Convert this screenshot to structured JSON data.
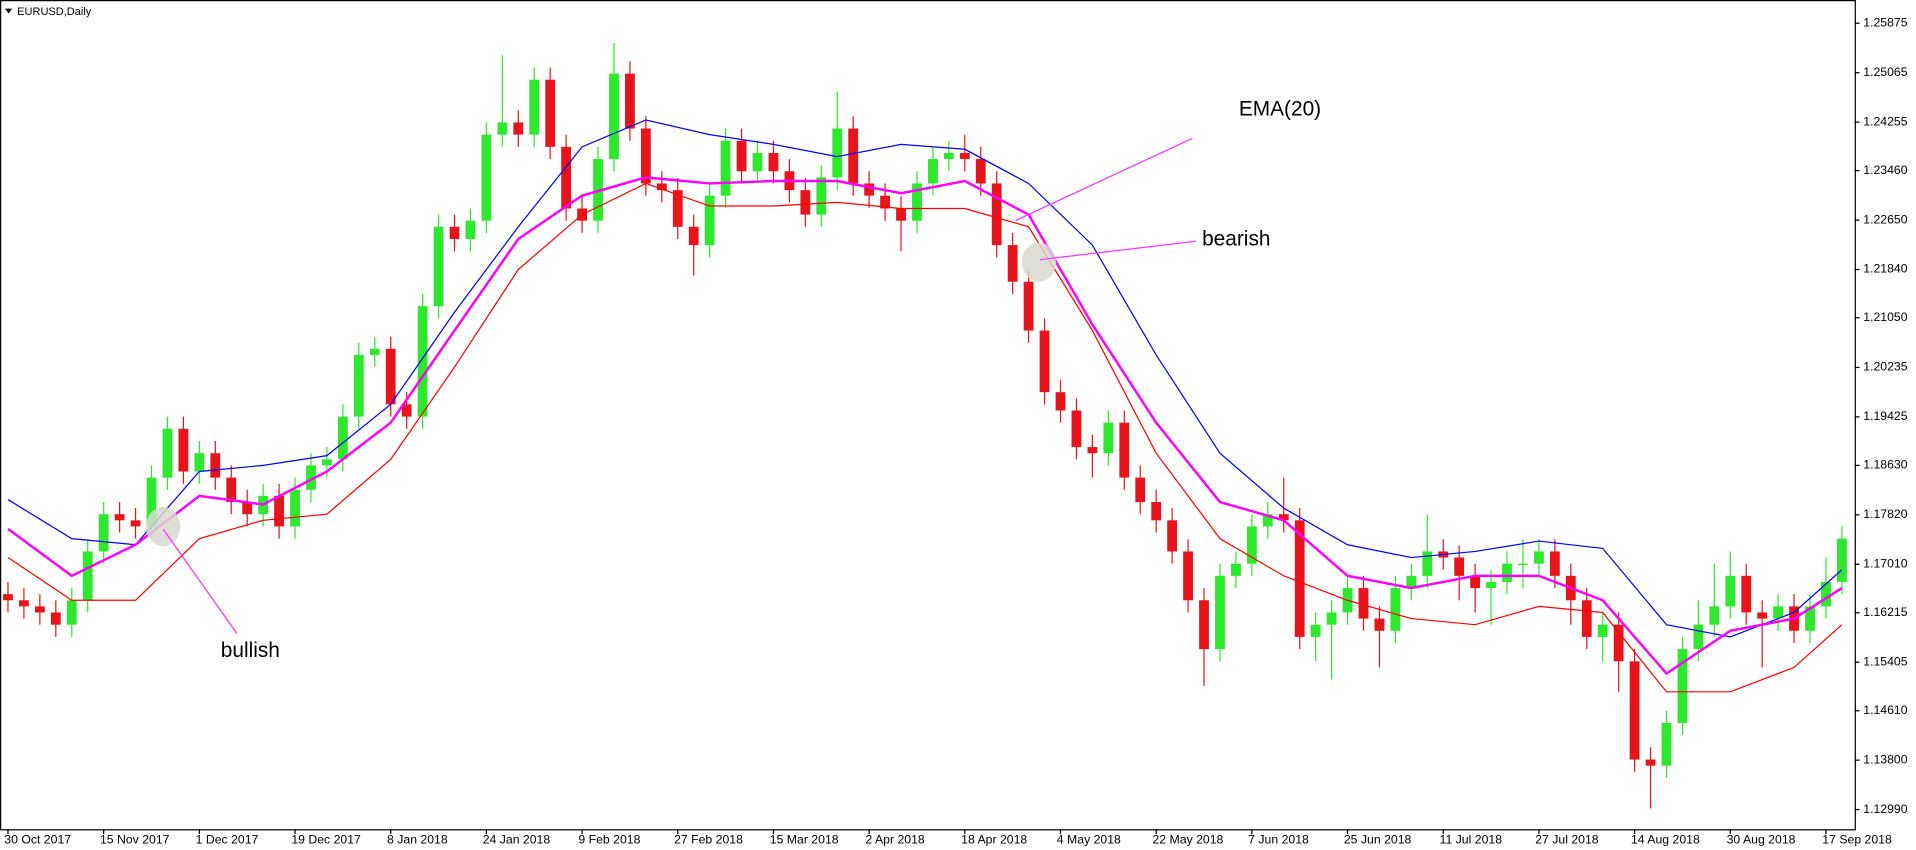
{
  "chart_data": {
    "type": "candlestick",
    "title": "EURUSD,Daily",
    "annotations": [
      "EMA(20)",
      "bearish",
      "bullish"
    ],
    "up_color": "#2ee82e",
    "down_color": "#e8141c",
    "open": [
      1.1652,
      1.1642,
      1.1632,
      1.1622,
      1.1602,
      1.1642,
      1.1722,
      1.1783,
      1.1773,
      1.1763,
      1.1843,
      1.1923,
      1.1853,
      1.1883,
      1.1843,
      1.1803,
      1.1783,
      1.1813,
      1.1763,
      1.1823,
      1.1863,
      1.1873,
      1.1943,
      1.2044,
      1.2054,
      1.1963,
      1.1943,
      1.2124,
      1.2254,
      1.2234,
      1.2264,
      1.2405,
      1.2425,
      1.2405,
      1.2495,
      1.2385,
      1.2284,
      1.2264,
      1.2365,
      1.2505,
      1.2415,
      1.2325,
      1.2314,
      1.2254,
      1.2224,
      1.2305,
      1.2395,
      1.2345,
      1.2375,
      1.2345,
      1.2314,
      1.2274,
      1.2335,
      1.2415,
      1.2325,
      1.2305,
      1.2284,
      1.2264,
      1.2325,
      1.2365,
      1.2375,
      1.2365,
      1.2325,
      1.2224,
      1.2164,
      1.2084,
      1.1983,
      1.1953,
      1.1893,
      1.1883,
      1.1933,
      1.1843,
      1.1803,
      1.1773,
      1.1722,
      1.1642,
      1.1562,
      1.1682,
      1.1702,
      1.1763,
      1.1783,
      1.1773,
      1.1582,
      1.1602,
      1.1622,
      1.1662,
      1.1612,
      1.1592,
      1.1662,
      1.1682,
      1.1722,
      1.1712,
      1.1682,
      1.1662,
      1.1672,
      1.1702,
      1.1702,
      1.1722,
      1.1682,
      1.1642,
      1.1582,
      1.1602,
      1.1542,
      1.1381,
      1.1371,
      1.1441,
      1.1562,
      1.1602,
      1.1632,
      1.1682,
      1.1622,
      1.1612,
      1.1632,
      1.1592,
      1.1632,
      1.1672
    ],
    "high": [
      1.1672,
      1.1662,
      1.1652,
      1.1642,
      1.1662,
      1.1742,
      1.1803,
      1.1803,
      1.1793,
      1.1863,
      1.1943,
      1.1943,
      1.1903,
      1.1903,
      1.1863,
      1.1823,
      1.1833,
      1.1833,
      1.1843,
      1.1883,
      1.1893,
      1.1963,
      1.2064,
      1.2074,
      1.2074,
      1.1983,
      1.2144,
      1.2274,
      1.2274,
      1.2284,
      1.2425,
      1.2535,
      1.2445,
      1.2515,
      1.2515,
      1.2405,
      1.2304,
      1.2385,
      1.2555,
      1.2525,
      1.2435,
      1.2345,
      1.2334,
      1.2274,
      1.2325,
      1.2415,
      1.2415,
      1.2395,
      1.2395,
      1.2365,
      1.2334,
      1.2355,
      1.2475,
      1.2435,
      1.2345,
      1.2325,
      1.2304,
      1.2345,
      1.2385,
      1.2395,
      1.2405,
      1.2385,
      1.2345,
      1.2244,
      1.2184,
      1.2104,
      1.2003,
      1.1973,
      1.1913,
      1.1953,
      1.1953,
      1.1863,
      1.1823,
      1.1793,
      1.1742,
      1.1662,
      1.1702,
      1.1722,
      1.1783,
      1.1803,
      1.1843,
      1.1793,
      1.1622,
      1.1642,
      1.1682,
      1.1682,
      1.1632,
      1.1682,
      1.1702,
      1.1782,
      1.1742,
      1.1732,
      1.1702,
      1.1692,
      1.1722,
      1.1742,
      1.1742,
      1.1742,
      1.1702,
      1.1662,
      1.1622,
      1.1622,
      1.1562,
      1.1401,
      1.1461,
      1.1582,
      1.1642,
      1.1702,
      1.1722,
      1.1702,
      1.1642,
      1.1652,
      1.1652,
      1.1652,
      1.1712,
      1.1763
    ],
    "low": [
      1.1622,
      1.1612,
      1.1602,
      1.1582,
      1.1582,
      1.1622,
      1.1702,
      1.1753,
      1.1743,
      1.1743,
      1.1823,
      1.1833,
      1.1833,
      1.1823,
      1.1783,
      1.1763,
      1.1763,
      1.1743,
      1.1743,
      1.1803,
      1.1843,
      1.1853,
      1.1923,
      1.2024,
      1.1943,
      1.1923,
      1.1923,
      1.2104,
      1.2214,
      1.2214,
      1.2244,
      1.2385,
      1.2385,
      1.2385,
      1.2365,
      1.2264,
      1.2244,
      1.2244,
      1.2345,
      1.2395,
      1.2305,
      1.2294,
      1.2234,
      1.2174,
      1.2204,
      1.2285,
      1.2325,
      1.2325,
      1.2325,
      1.2294,
      1.2254,
      1.2254,
      1.2315,
      1.2305,
      1.2285,
      1.2264,
      1.2214,
      1.2244,
      1.2305,
      1.2345,
      1.2345,
      1.2305,
      1.2204,
      1.2144,
      1.2064,
      1.1963,
      1.1933,
      1.1873,
      1.1843,
      1.1863,
      1.1823,
      1.1783,
      1.1753,
      1.1702,
      1.1622,
      1.1502,
      1.1542,
      1.1662,
      1.1682,
      1.1743,
      1.1753,
      1.1562,
      1.1542,
      1.1512,
      1.1602,
      1.1592,
      1.1532,
      1.1572,
      1.1642,
      1.1662,
      1.1692,
      1.1642,
      1.1622,
      1.1602,
      1.1652,
      1.1662,
      1.1682,
      1.1662,
      1.1602,
      1.1562,
      1.1542,
      1.1492,
      1.1361,
      1.1301,
      1.1351,
      1.1421,
      1.1542,
      1.1582,
      1.1612,
      1.1602,
      1.1532,
      1.1592,
      1.1572,
      1.1572,
      1.1612,
      1.1652
    ],
    "close": [
      1.1642,
      1.1632,
      1.1622,
      1.1602,
      1.1642,
      1.1722,
      1.1783,
      1.1773,
      1.1763,
      1.1843,
      1.1923,
      1.1853,
      1.1883,
      1.1843,
      1.1803,
      1.1783,
      1.1813,
      1.1763,
      1.1823,
      1.1863,
      1.1873,
      1.1943,
      1.2044,
      1.2054,
      1.1963,
      1.1943,
      1.2124,
      1.2254,
      1.2234,
      1.2264,
      1.2405,
      1.2425,
      1.2405,
      1.2495,
      1.2385,
      1.2284,
      1.2264,
      1.2365,
      1.2505,
      1.2415,
      1.2325,
      1.2314,
      1.2254,
      1.2224,
      1.2305,
      1.2395,
      1.2345,
      1.2375,
      1.2345,
      1.2314,
      1.2274,
      1.2335,
      1.2415,
      1.2325,
      1.2305,
      1.2284,
      1.2264,
      1.2325,
      1.2365,
      1.2375,
      1.2365,
      1.2325,
      1.2224,
      1.2164,
      1.2084,
      1.1983,
      1.1953,
      1.1893,
      1.1883,
      1.1933,
      1.1843,
      1.1803,
      1.1773,
      1.1722,
      1.1642,
      1.1562,
      1.1682,
      1.1702,
      1.1763,
      1.1783,
      1.1773,
      1.1582,
      1.1602,
      1.1622,
      1.1662,
      1.1612,
      1.1592,
      1.1662,
      1.1682,
      1.1722,
      1.1712,
      1.1682,
      1.1662,
      1.1672,
      1.1702,
      1.1702,
      1.1722,
      1.1682,
      1.1642,
      1.1582,
      1.1602,
      1.1542,
      1.1381,
      1.1371,
      1.1441,
      1.1562,
      1.1602,
      1.1632,
      1.1682,
      1.1622,
      1.1612,
      1.1632,
      1.1592,
      1.1632,
      1.1672,
      1.1743
    ],
    "ema_x": [
      0,
      4,
      8,
      12,
      16,
      20,
      24,
      28,
      32,
      36,
      40,
      44,
      48,
      52,
      56,
      60,
      64,
      68,
      72,
      76,
      80,
      84,
      88,
      92,
      96,
      100,
      104,
      108,
      112,
      115
    ],
    "series": [
      {
        "color": "#0000ff",
        "values": [
          1.1807,
          1.1743,
          1.1733,
          1.1853,
          1.1863,
          1.1879,
          1.1963,
          1.2114,
          1.2254,
          1.2385,
          1.2429,
          1.2405,
          1.2389,
          1.2369,
          1.2389,
          1.2381,
          1.2325,
          1.2224,
          1.2044,
          1.1883,
          1.1793,
          1.1733,
          1.1712,
          1.1722,
          1.1739,
          1.1727,
          1.1602,
          1.1582,
          1.1622,
          1.1692
        ]
      },
      {
        "color": "#ff00ff",
        "values": [
          1.1759,
          1.1682,
          1.1733,
          1.1813,
          1.1799,
          1.1853,
          1.1933,
          1.2084,
          1.2234,
          1.2305,
          1.2335,
          1.2325,
          1.2329,
          1.2329,
          1.2309,
          1.2329,
          1.2274,
          1.2094,
          1.1933,
          1.1803,
          1.1773,
          1.1682,
          1.1662,
          1.1682,
          1.1682,
          1.1642,
          1.1522,
          1.1592,
          1.1612,
          1.1662
        ]
      },
      {
        "color": "#ff0000",
        "values": [
          1.1712,
          1.1642,
          1.1642,
          1.1743,
          1.1773,
          1.1783,
          1.1873,
          1.2024,
          1.2184,
          1.2274,
          1.2325,
          1.2288,
          1.2288,
          1.2294,
          1.2284,
          1.2284,
          1.2254,
          1.2084,
          1.1883,
          1.1743,
          1.1682,
          1.1642,
          1.1612,
          1.1602,
          1.1632,
          1.1622,
          1.1492,
          1.1492,
          1.1532,
          1.1602
        ]
      }
    ],
    "xlim": [
      -0.5,
      115.8
    ],
    "xticks": [
      {
        "value": 0,
        "label": "30 Oct 2017"
      },
      {
        "value": 6,
        "label": "15 Nov 2017"
      },
      {
        "value": 12,
        "label": "1 Dec 2017"
      },
      {
        "value": 18,
        "label": "19 Dec 2017"
      },
      {
        "value": 24,
        "label": "8 Jan 2018"
      },
      {
        "value": 30,
        "label": "24 Jan 2018"
      },
      {
        "value": 36,
        "label": "9 Feb 2018"
      },
      {
        "value": 42,
        "label": "27 Feb 2018"
      },
      {
        "value": 48,
        "label": "15 Mar 2018"
      },
      {
        "value": 54,
        "label": "2 Apr 2018"
      },
      {
        "value": 60,
        "label": "18 Apr 2018"
      },
      {
        "value": 66,
        "label": "4 May 2018"
      },
      {
        "value": 72,
        "label": "22 May 2018"
      },
      {
        "value": 78,
        "label": "7 Jun 2018"
      },
      {
        "value": 84,
        "label": "25 Jun 2018"
      },
      {
        "value": 90,
        "label": "11 Jul 2018"
      },
      {
        "value": 96,
        "label": "27 Jul 2018"
      },
      {
        "value": 102,
        "label": "14 Aug 2018"
      },
      {
        "value": 108,
        "label": "30 Aug 2018"
      },
      {
        "value": 114,
        "label": "17 Sep 2018"
      }
    ],
    "ylim": [
      1.12669,
      1.26196
    ],
    "yticks": [
      1.25875,
      1.25065,
      1.24255,
      {
        "value": 1.2346,
        "label": "1.23460"
      },
      {
        "value": 1.2265,
        "label": "1.22650"
      },
      {
        "value": 1.2184,
        "label": "1.21840"
      },
      {
        "value": 1.2105,
        "label": "1.21050"
      },
      1.20235,
      1.19425,
      {
        "value": 1.1863,
        "label": "1.18630"
      },
      {
        "value": 1.1782,
        "label": "1.17820"
      },
      {
        "value": 1.1701,
        "label": "1.17010"
      },
      1.16215,
      1.15405,
      {
        "value": 1.1461,
        "label": "1.14610"
      },
      {
        "value": 1.138,
        "label": "1.13800"
      },
      {
        "value": 1.1299,
        "label": "1.12990"
      }
    ]
  }
}
